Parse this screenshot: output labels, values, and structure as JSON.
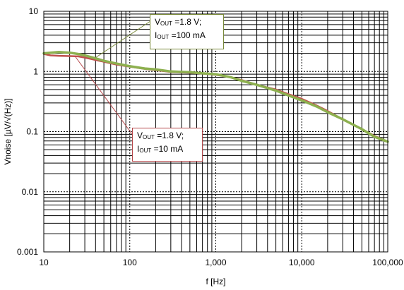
{
  "chart_data": {
    "type": "line",
    "title": "",
    "xlabel": "f [Hz]",
    "ylabel": "Vnoise [µV/√(Hz)]",
    "x_scale": "log",
    "y_scale": "log",
    "xlim": [
      10,
      100000
    ],
    "ylim": [
      0.001,
      10
    ],
    "grid": true,
    "x_ticks": [
      "10",
      "100",
      "1,000",
      "10,000",
      "100,000"
    ],
    "y_ticks": [
      "0.001",
      "0.01",
      "0.1",
      "1",
      "10"
    ],
    "series": [
      {
        "color": "#c0504d",
        "x": [
          10,
          12,
          15,
          20,
          25,
          30,
          40,
          50,
          70,
          100,
          150,
          200,
          300,
          500,
          700,
          1000,
          1500,
          2000,
          3000,
          5000,
          7000,
          10000,
          15000,
          20000,
          30000,
          50000,
          70000,
          100000
        ],
        "values": [
          1.95,
          1.85,
          1.82,
          1.8,
          1.78,
          1.7,
          1.55,
          1.45,
          1.3,
          1.2,
          1.1,
          1.05,
          0.98,
          0.95,
          0.92,
          0.88,
          0.8,
          0.72,
          0.6,
          0.5,
          0.42,
          0.35,
          0.27,
          0.22,
          0.16,
          0.11,
          0.085,
          0.068
        ]
      },
      {
        "color": "#8db04f",
        "x": [
          10,
          12,
          15,
          20,
          25,
          30,
          40,
          50,
          70,
          100,
          150,
          200,
          300,
          500,
          700,
          1000,
          1500,
          2000,
          3000,
          5000,
          7000,
          10000,
          15000,
          20000,
          30000,
          50000,
          70000,
          100000
        ],
        "values": [
          2.0,
          2.05,
          2.1,
          2.05,
          1.95,
          1.85,
          1.65,
          1.5,
          1.35,
          1.22,
          1.12,
          1.08,
          1.0,
          0.97,
          0.93,
          0.9,
          0.8,
          0.7,
          0.6,
          0.48,
          0.4,
          0.33,
          0.26,
          0.21,
          0.16,
          0.11,
          0.082,
          0.068
        ]
      }
    ],
    "annotations": [
      {
        "line1_main": "V",
        "line1_sub": "OUT",
        "line1_rest": " =1.8 V;",
        "line2_main": "I",
        "line2_sub": "OUT",
        "line2_rest": " =100 mA",
        "color": "#7a8a3a"
      },
      {
        "line1_main": "V",
        "line1_sub": "OUT",
        "line1_rest": " =1.8 V;",
        "line2_main": "I",
        "line2_sub": "OUT",
        "line2_rest": " =10 mA",
        "color": "#b5474a"
      }
    ]
  }
}
